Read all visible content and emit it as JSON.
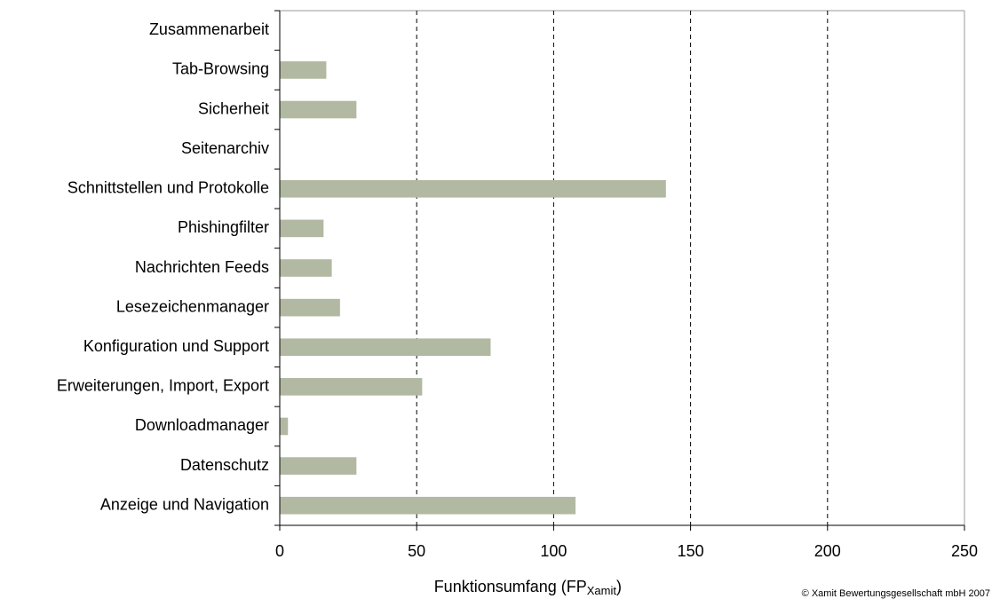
{
  "chart_data": {
    "type": "bar",
    "orientation": "horizontal",
    "categories": [
      "Anzeige und Navigation",
      "Datenschutz",
      "Downloadmanager",
      "Erweiterungen, Import, Export",
      "Konfiguration und Support",
      "Lesezeichenmanager",
      "Nachrichten Feeds",
      "Phishingfilter",
      "Schnittstellen und Protokolle",
      "Seitenarchiv",
      "Sicherheit",
      "Tab-Browsing",
      "Zusammenarbeit"
    ],
    "values": [
      108,
      28,
      3,
      52,
      77,
      22,
      19,
      16,
      141,
      0,
      28,
      17,
      0
    ],
    "color": "#b2b9a2",
    "xlim": [
      0,
      250
    ],
    "xticks": [
      0,
      50,
      100,
      150,
      200,
      250
    ],
    "grid": true,
    "x_label": {
      "main": "Funktionsumfang (FP",
      "sub": "Xamit",
      "end": ")"
    },
    "annotation": "© Xamit Bewertungsgesellschaft mbH 2007"
  }
}
